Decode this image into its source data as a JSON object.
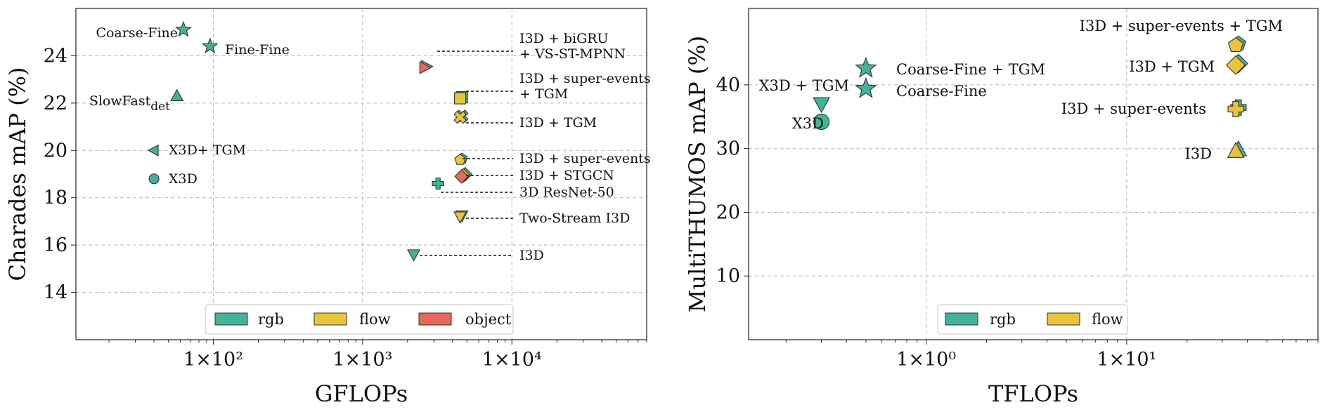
{
  "colors": {
    "rgb": "#41b39b",
    "flow": "#e9c43a",
    "object": "#e8685a"
  },
  "chart_data": [
    {
      "type": "scatter",
      "xlabel": "GFLOPs",
      "ylabel": "Charades mAP (%)",
      "xscale": "log",
      "xlim": [
        12,
        80000
      ],
      "ylim": [
        12.0,
        26.0
      ],
      "xticks": [
        {
          "value": 100,
          "label": "1×10²"
        },
        {
          "value": 1000,
          "label": "1×10³"
        },
        {
          "value": 10000,
          "label": "1×10⁴"
        }
      ],
      "yticks": [
        14,
        16,
        18,
        20,
        22,
        24
      ],
      "grid": true,
      "legend": {
        "placement": "bottom-center",
        "entries": [
          {
            "label": "rgb",
            "modality": "rgb"
          },
          {
            "label": "flow",
            "modality": "flow"
          },
          {
            "label": "object",
            "modality": "object"
          }
        ]
      },
      "points": [
        {
          "x": 63,
          "y": 25.1,
          "marker": "star",
          "modality": [
            "rgb"
          ],
          "label": "Coarse-Fine"
        },
        {
          "x": 95,
          "y": 24.4,
          "marker": "star",
          "modality": [
            "rgb"
          ],
          "label": "Fine-Fine"
        },
        {
          "x": 57,
          "y": 22.3,
          "marker": "triangle-up",
          "modality": [
            "rgb"
          ],
          "label": "SlowFast",
          "label_sub": "det"
        },
        {
          "x": 40,
          "y": 20.0,
          "marker": "triangle-left",
          "modality": [
            "rgb"
          ],
          "label": "X3D+ TGM"
        },
        {
          "x": 40,
          "y": 18.8,
          "marker": "circle",
          "modality": [
            "rgb"
          ],
          "label": "X3D"
        },
        {
          "x": 2600,
          "y": 23.5,
          "marker": "triangle-right",
          "modality": [
            "rgb",
            "object"
          ],
          "label": "I3D + biGRU\n+ VS-ST-MPNN",
          "leader": true
        },
        {
          "x": 4500,
          "y": 22.2,
          "marker": "square",
          "modality": [
            "rgb",
            "flow"
          ],
          "label": "I3D + super-events\n+ TGM",
          "leader": true
        },
        {
          "x": 4500,
          "y": 21.4,
          "marker": "x",
          "modality": [
            "rgb",
            "flow"
          ],
          "label": "I3D + TGM",
          "leader": true
        },
        {
          "x": 4500,
          "y": 19.6,
          "marker": "pentagon",
          "modality": [
            "rgb",
            "flow"
          ],
          "label": "I3D + super-events",
          "leader": true
        },
        {
          "x": 4600,
          "y": 18.9,
          "marker": "diamond",
          "modality": [
            "rgb",
            "flow",
            "object"
          ],
          "label": "I3D + STGCN",
          "leader": true
        },
        {
          "x": 3200,
          "y": 18.6,
          "marker": "plus",
          "modality": [
            "rgb"
          ],
          "label": "3D ResNet-50",
          "leader": true
        },
        {
          "x": 4500,
          "y": 17.2,
          "marker": "triangle-down",
          "modality": [
            "rgb",
            "flow"
          ],
          "label": "Two-Stream I3D",
          "leader": true
        },
        {
          "x": 2200,
          "y": 15.6,
          "marker": "triangle-down",
          "modality": [
            "rgb"
          ],
          "label": "I3D",
          "leader": true
        }
      ]
    },
    {
      "type": "scatter",
      "xlabel": "TFLOPs",
      "ylabel": "MultiTHUMOS mAP (%)",
      "xscale": "log",
      "xlim": [
        0.13,
        90
      ],
      "ylim": [
        0,
        52
      ],
      "xticks": [
        {
          "value": 1,
          "label": "1×10⁰"
        },
        {
          "value": 10,
          "label": "1×10¹"
        }
      ],
      "yticks": [
        10,
        20,
        30,
        40
      ],
      "grid": true,
      "legend": {
        "placement": "bottom-center",
        "entries": [
          {
            "label": "rgb",
            "modality": "rgb"
          },
          {
            "label": "flow",
            "modality": "flow"
          }
        ]
      },
      "points": [
        {
          "x": 0.5,
          "y": 42.6,
          "marker": "star",
          "modality": [
            "rgb"
          ],
          "label": "Coarse-Fine + TGM"
        },
        {
          "x": 0.5,
          "y": 39.4,
          "marker": "star",
          "modality": [
            "rgb"
          ],
          "label": "Coarse-Fine"
        },
        {
          "x": 0.3,
          "y": 37.0,
          "marker": "triangle-down",
          "modality": [
            "rgb"
          ],
          "label": "X3D + TGM"
        },
        {
          "x": 0.3,
          "y": 34.2,
          "marker": "circle",
          "modality": [
            "rgb"
          ],
          "label": "X3D"
        },
        {
          "x": 35,
          "y": 46.2,
          "marker": "pentagon",
          "modality": [
            "rgb",
            "flow"
          ],
          "label": "I3D + super-events + TGM"
        },
        {
          "x": 35,
          "y": 43.1,
          "marker": "diamond",
          "modality": [
            "rgb",
            "flow"
          ],
          "label": "I3D + TGM"
        },
        {
          "x": 35,
          "y": 36.2,
          "marker": "plus",
          "modality": [
            "rgb",
            "flow"
          ],
          "label": "I3D + super-events"
        },
        {
          "x": 35,
          "y": 29.6,
          "marker": "triangle-up",
          "modality": [
            "rgb",
            "flow"
          ],
          "label": "I3D"
        }
      ]
    }
  ]
}
